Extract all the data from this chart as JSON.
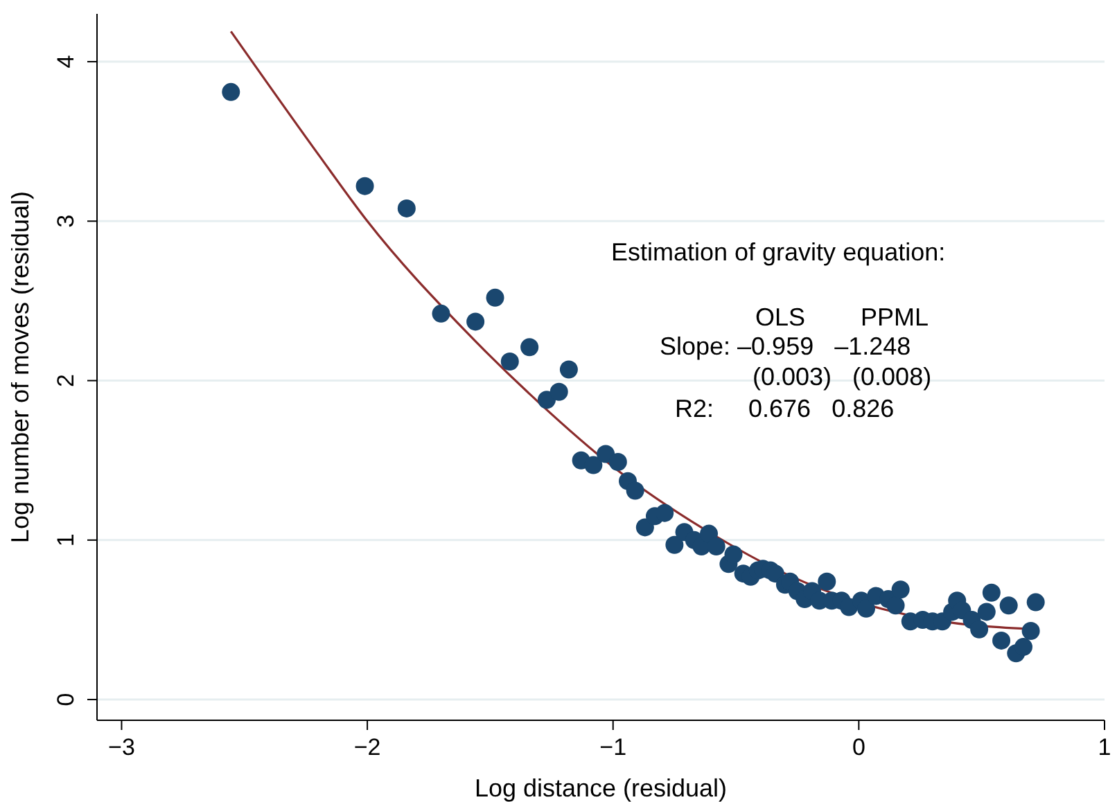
{
  "chart_data": {
    "type": "scatter",
    "xlabel": "Log distance (residual)",
    "ylabel": "Log number of moves (residual)",
    "xlim": [
      -3.1,
      1.0
    ],
    "xticks": [
      -3,
      -2,
      -1,
      0,
      1
    ],
    "ylim": [
      -0.13,
      4.3
    ],
    "yticks": [
      0,
      1,
      2,
      3,
      4
    ],
    "grid": "y",
    "legend": false,
    "annotations": [
      "Estimation of gravity equation:",
      "OLS        PPML",
      "Slope: –0.959   –1.248",
      "(0.003)   (0.008)",
      "R2:     0.676   0.826"
    ],
    "series": [
      {
        "marker": "circle",
        "color": "#1a476f",
        "x": [
          -2.555,
          -2.01,
          -1.84,
          -1.7,
          -1.56,
          -1.48,
          -1.42,
          -1.34,
          -1.27,
          -1.22,
          -1.18,
          -1.13,
          -1.08,
          -1.03,
          -0.98,
          -0.94,
          -0.91,
          -0.87,
          -0.83,
          -0.79,
          -0.75,
          -0.71,
          -0.67,
          -0.64,
          -0.61,
          -0.58,
          -0.53,
          -0.51,
          -0.47,
          -0.44,
          -0.41,
          -0.39,
          -0.36,
          -0.34,
          -0.3,
          -0.28,
          -0.25,
          -0.22,
          -0.19,
          -0.16,
          -0.13,
          -0.11,
          -0.07,
          -0.04,
          0.01,
          0.03,
          0.07,
          0.12,
          0.15,
          0.17,
          0.21,
          0.26,
          0.3,
          0.34,
          0.38,
          0.4,
          0.42,
          0.46,
          0.49,
          0.52,
          0.54,
          0.58,
          0.61,
          0.64,
          0.67,
          0.7,
          0.72
        ],
        "values": [
          3.81,
          3.22,
          3.08,
          2.42,
          2.37,
          2.52,
          2.12,
          2.21,
          1.88,
          1.93,
          2.07,
          1.5,
          1.47,
          1.54,
          1.49,
          1.37,
          1.31,
          1.08,
          1.15,
          1.17,
          0.97,
          1.05,
          1.0,
          0.96,
          1.04,
          0.96,
          0.85,
          0.91,
          0.79,
          0.77,
          0.81,
          0.82,
          0.81,
          0.79,
          0.72,
          0.74,
          0.68,
          0.63,
          0.68,
          0.62,
          0.74,
          0.62,
          0.62,
          0.58,
          0.62,
          0.57,
          0.65,
          0.63,
          0.59,
          0.69,
          0.49,
          0.5,
          0.49,
          0.49,
          0.55,
          0.62,
          0.56,
          0.5,
          0.44,
          0.55,
          0.67,
          0.37,
          0.59,
          0.29,
          0.33,
          0.43,
          0.61
        ]
      },
      {
        "type": "line",
        "marker": "none",
        "line_style": "solid",
        "color": "#8b2c2c",
        "x": [
          -2.555,
          -2.2,
          -2.0,
          -1.6,
          -1.3,
          -1.0,
          -0.62,
          -0.3,
          0.0,
          0.3,
          0.72
        ],
        "values": [
          4.19,
          3.42,
          3.0,
          2.31,
          1.86,
          1.46,
          1.06,
          0.79,
          0.61,
          0.5,
          0.44
        ]
      }
    ]
  }
}
